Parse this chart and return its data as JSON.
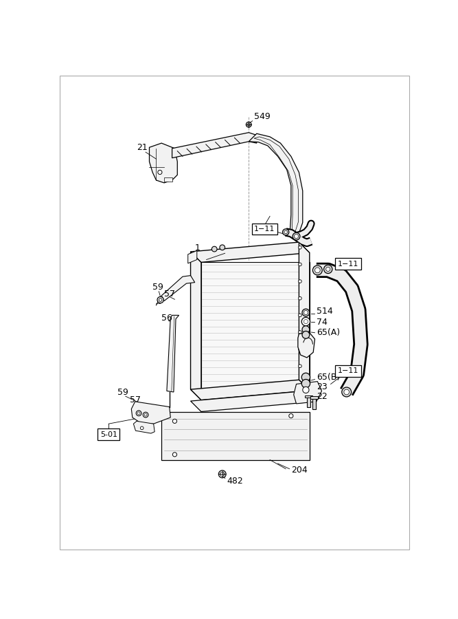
{
  "bg_color": "#ffffff",
  "lc": "#000000",
  "gc": "#999999",
  "fl": "#f2f2f2",
  "fg": "#d8d8d8"
}
